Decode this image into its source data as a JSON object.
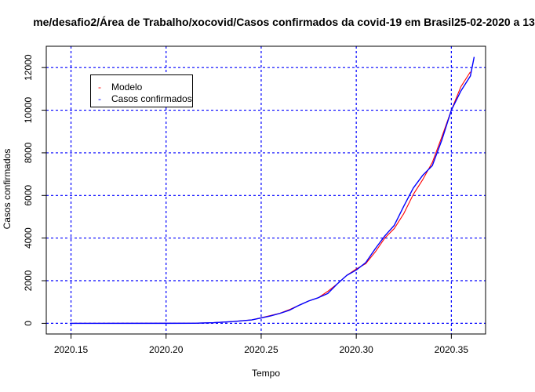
{
  "chart_data": {
    "type": "line",
    "title": "me/desafio2/Área de Trabalho/xocovid/Casos confirmados da covid-19 em Brasil25-02-2020 a 13",
    "xlabel": "Tempo",
    "ylabel": "Casos confirmados",
    "xlim": [
      2020.137,
      2020.368
    ],
    "ylim": [
      -500,
      13000
    ],
    "x_ticks": [
      "2020.15",
      "2020.20",
      "2020.25",
      "2020.30",
      "2020.35"
    ],
    "y_ticks": [
      "0",
      "2000",
      "4000",
      "6000",
      "8000",
      "10000",
      "12000"
    ],
    "grid": true,
    "grid_color": "#0000ff",
    "legend_position": "top-left",
    "series": [
      {
        "name": "Modelo",
        "color": "#ff0000",
        "points": [
          [
            2020.15,
            0
          ],
          [
            2020.2,
            2
          ],
          [
            2020.215,
            5
          ],
          [
            2020.225,
            30
          ],
          [
            2020.235,
            80
          ],
          [
            2020.245,
            160
          ],
          [
            2020.25,
            260
          ],
          [
            2020.255,
            370
          ],
          [
            2020.26,
            480
          ],
          [
            2020.265,
            650
          ],
          [
            2020.27,
            850
          ],
          [
            2020.275,
            1050
          ],
          [
            2020.28,
            1200
          ],
          [
            2020.285,
            1500
          ],
          [
            2020.29,
            1850
          ],
          [
            2020.295,
            2250
          ],
          [
            2020.3,
            2550
          ],
          [
            2020.305,
            2800
          ],
          [
            2020.31,
            3350
          ],
          [
            2020.315,
            4000
          ],
          [
            2020.32,
            4450
          ],
          [
            2020.325,
            5150
          ],
          [
            2020.33,
            6050
          ],
          [
            2020.335,
            6750
          ],
          [
            2020.34,
            7550
          ],
          [
            2020.345,
            8750
          ],
          [
            2020.35,
            10000
          ],
          [
            2020.355,
            11100
          ],
          [
            2020.36,
            11800
          ]
        ]
      },
      {
        "name": "Casos confirmados",
        "color": "#0000ff",
        "points": [
          [
            2020.15,
            0
          ],
          [
            2020.2,
            1
          ],
          [
            2020.215,
            4
          ],
          [
            2020.225,
            30
          ],
          [
            2020.235,
            80
          ],
          [
            2020.245,
            160
          ],
          [
            2020.25,
            250
          ],
          [
            2020.255,
            350
          ],
          [
            2020.26,
            470
          ],
          [
            2020.265,
            620
          ],
          [
            2020.27,
            850
          ],
          [
            2020.275,
            1050
          ],
          [
            2020.28,
            1200
          ],
          [
            2020.285,
            1400
          ],
          [
            2020.29,
            1850
          ],
          [
            2020.295,
            2250
          ],
          [
            2020.3,
            2500
          ],
          [
            2020.305,
            2850
          ],
          [
            2020.31,
            3500
          ],
          [
            2020.315,
            4100
          ],
          [
            2020.32,
            4600
          ],
          [
            2020.325,
            5500
          ],
          [
            2020.33,
            6350
          ],
          [
            2020.335,
            6950
          ],
          [
            2020.34,
            7400
          ],
          [
            2020.345,
            8600
          ],
          [
            2020.35,
            10000
          ],
          [
            2020.355,
            10900
          ],
          [
            2020.36,
            11600
          ],
          [
            2020.362,
            12500
          ]
        ]
      }
    ]
  }
}
